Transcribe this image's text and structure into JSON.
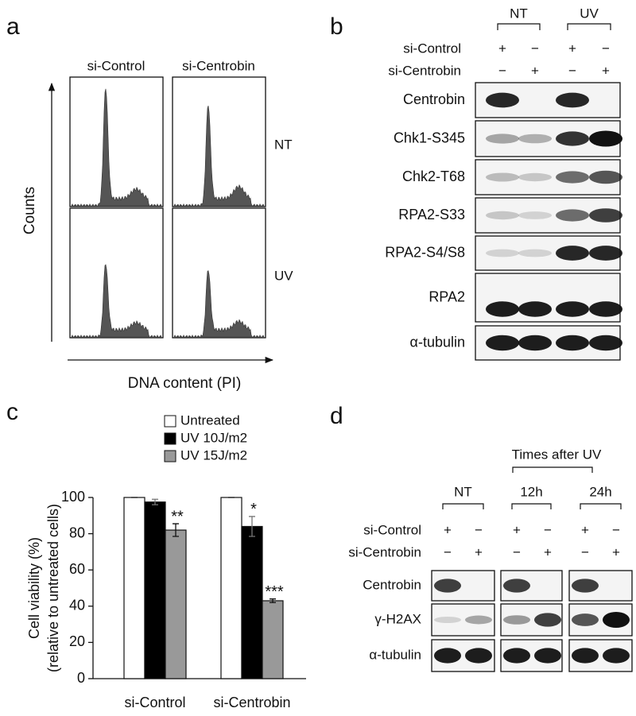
{
  "panel_a": {
    "label": "a",
    "columns": [
      "si-Control",
      "si-Centrobin"
    ],
    "rows": [
      "NT",
      "UV"
    ],
    "y_label": "Counts",
    "x_label": "DNA content (PI)"
  },
  "panel_b": {
    "label": "b",
    "groups": [
      "NT",
      "UV"
    ],
    "treatments": [
      {
        "name": "si-Control",
        "signs": [
          "+",
          "−",
          "+",
          "−"
        ]
      },
      {
        "name": "si-Centrobin",
        "signs": [
          "−",
          "+",
          "−",
          "+"
        ]
      }
    ],
    "blots": [
      "Centrobin",
      "Chk1-S345",
      "Chk2-T68",
      "RPA2-S33",
      "RPA2-S4/S8",
      "RPA2",
      "α-tubulin"
    ]
  },
  "chart_data": {
    "type": "bar",
    "label": "c",
    "categories": [
      "si-Control",
      "si-Centrobin"
    ],
    "series": [
      {
        "name": "Untreated",
        "color": "#ffffff",
        "values": [
          100,
          100
        ],
        "errors": [
          0,
          0
        ],
        "significance": [
          null,
          null
        ]
      },
      {
        "name": "UV 10J/m2",
        "color": "#000000",
        "values": [
          97.5,
          84
        ],
        "errors": [
          1.5,
          5.5
        ],
        "significance": [
          null,
          "*"
        ]
      },
      {
        "name": "UV 15J/m2",
        "color": "#999999",
        "values": [
          82,
          43
        ],
        "errors": [
          3.5,
          1
        ],
        "significance": [
          "**",
          "***"
        ]
      }
    ],
    "y_label": [
      "Cell viability (%)",
      "(relative to untreated cells)"
    ],
    "ylim": [
      0,
      100
    ],
    "yticks": [
      0,
      20,
      40,
      60,
      80,
      100
    ],
    "legend": "top"
  },
  "panel_d": {
    "label": "d",
    "header": "Times after UV",
    "groups": [
      "NT",
      "12h",
      "24h"
    ],
    "treatments": [
      {
        "name": "si-Control",
        "signs": [
          "+",
          "−",
          "+",
          "−",
          "+",
          "−"
        ]
      },
      {
        "name": "si-Centrobin",
        "signs": [
          "−",
          "+",
          "−",
          "+",
          "−",
          "+"
        ]
      }
    ],
    "blots": [
      "Centrobin",
      "γ-H2AX",
      "α-tubulin"
    ]
  }
}
